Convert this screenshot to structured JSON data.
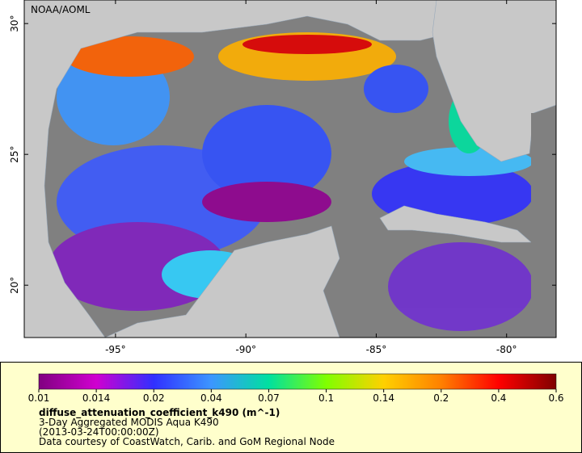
{
  "map": {
    "title": "NOAA/AOML",
    "xlim": [
      -98.5,
      -78.1
    ],
    "ylim": [
      18.0,
      30.9
    ],
    "xticks": [
      {
        "value": -95,
        "label": "-95°"
      },
      {
        "value": -90,
        "label": "-90°"
      },
      {
        "value": -85,
        "label": "-85°"
      },
      {
        "value": -80,
        "label": "-80°"
      }
    ],
    "yticks": [
      {
        "value": 20,
        "label": "20°"
      },
      {
        "value": 25,
        "label": "25°"
      },
      {
        "value": 30,
        "label": "30°"
      }
    ]
  },
  "colorbar": {
    "ticks": [
      0.01,
      0.014,
      0.02,
      0.04,
      0.07,
      0.1,
      0.14,
      0.2,
      0.4,
      0.6
    ],
    "colors": [
      "#800080",
      "#d000d0",
      "#3030ff",
      "#3c96ff",
      "#00e0a0",
      "#80ff00",
      "#ffd000",
      "#ff8000",
      "#ff0000",
      "#800000"
    ]
  },
  "legend": {
    "variable": "diffuse_attenuation_coefficient_k490 (m^-1)",
    "lines": [
      "3-Day Aggregated MODIS Aqua K490",
      "(2013-03-24T00:00:00Z)",
      "Data courtesy of CoastWatch, Carib. and GoM Regional Node"
    ]
  }
}
